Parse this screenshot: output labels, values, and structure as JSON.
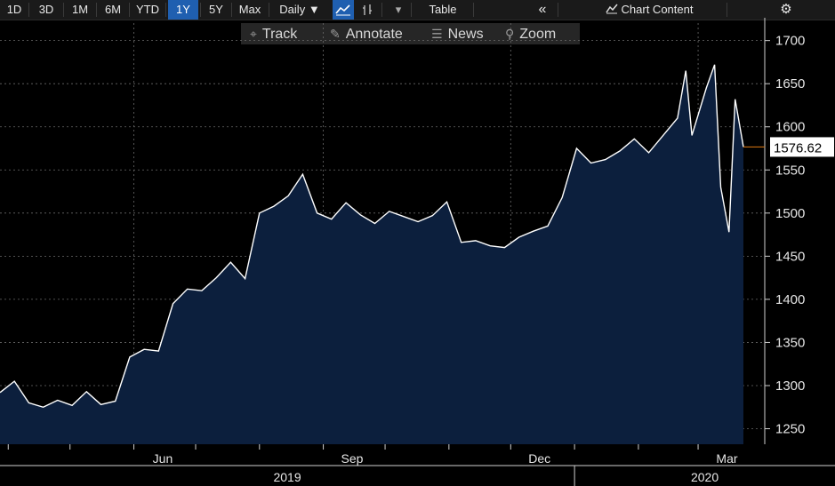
{
  "toolbar": {
    "ranges": [
      "1D",
      "3D",
      "1M",
      "6M",
      "YTD",
      "1Y",
      "5Y",
      "Max"
    ],
    "selected_range": "1Y",
    "interval": "Daily",
    "interval_arrow": "▼",
    "table_label": "Table",
    "collapse_icon": "«",
    "chart_content_label": "Chart Content",
    "chart_content_icon": "chart-content-icon",
    "settings_icon": "⚙",
    "line_chart_icon": "line-chart-icon",
    "bar_chart_icon": "bar-chart-icon",
    "dropdown_icon": "▾"
  },
  "subbar": {
    "track_label": "Track",
    "annotate_label": "Annotate",
    "news_label": "News",
    "zoom_label": "Zoom"
  },
  "chart_data": {
    "type": "area",
    "line_color": "#ffffff",
    "fill_color": "#0c1f3d",
    "last_value_label": "1576.62",
    "last_value_color": "#e07a10",
    "y_ticks": [
      1250,
      1300,
      1350,
      1400,
      1450,
      1500,
      1550,
      1600,
      1650,
      1700
    ],
    "ylim": [
      1232,
      1712
    ],
    "x_month_labels": [
      "Jun",
      "Sep",
      "Dec",
      "Mar"
    ],
    "x_year_labels": [
      "2019",
      "2020"
    ],
    "grid": true,
    "x": [
      "2019-03-28",
      "2019-04-04",
      "2019-04-11",
      "2019-04-18",
      "2019-04-25",
      "2019-05-02",
      "2019-05-09",
      "2019-05-16",
      "2019-05-23",
      "2019-05-30",
      "2019-06-06",
      "2019-06-13",
      "2019-06-20",
      "2019-06-27",
      "2019-07-04",
      "2019-07-11",
      "2019-07-18",
      "2019-07-25",
      "2019-08-01",
      "2019-08-08",
      "2019-08-15",
      "2019-08-22",
      "2019-08-29",
      "2019-09-05",
      "2019-09-12",
      "2019-09-19",
      "2019-09-26",
      "2019-10-03",
      "2019-10-10",
      "2019-10-17",
      "2019-10-24",
      "2019-10-31",
      "2019-11-07",
      "2019-11-14",
      "2019-11-21",
      "2019-11-28",
      "2019-12-05",
      "2019-12-12",
      "2019-12-19",
      "2019-12-26",
      "2020-01-02",
      "2020-01-09",
      "2020-01-16",
      "2020-01-23",
      "2020-01-30",
      "2020-02-06",
      "2020-02-13",
      "2020-02-20",
      "2020-02-24",
      "2020-02-27",
      "2020-03-05",
      "2020-03-09",
      "2020-03-12",
      "2020-03-16",
      "2020-03-19",
      "2020-03-23"
    ],
    "values": [
      1292,
      1305,
      1280,
      1275,
      1283,
      1277,
      1293,
      1278,
      1282,
      1333,
      1342,
      1340,
      1395,
      1412,
      1410,
      1425,
      1443,
      1424,
      1500,
      1508,
      1520,
      1545,
      1500,
      1493,
      1512,
      1498,
      1488,
      1502,
      1496,
      1490,
      1497,
      1513,
      1466,
      1468,
      1462,
      1460,
      1472,
      1479,
      1485,
      1518,
      1575,
      1558,
      1562,
      1572,
      1586,
      1570,
      1590,
      1610,
      1665,
      1590,
      1645,
      1672,
      1530,
      1478,
      1632,
      1576.62
    ]
  }
}
